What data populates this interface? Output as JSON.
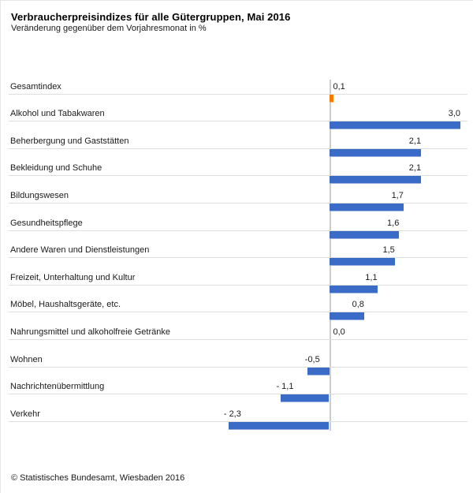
{
  "title": "Verbraucherpreisindizes für alle Gütergruppen, Mai 2016",
  "subtitle": "Veränderung gegenüber dem Vorjahresmonat in %",
  "footer": "© Statistisches Bundesamt, Wiesbaden 2016",
  "colors": {
    "bar_blue": "#3a6bc6",
    "bar_blue_edge": "#a9bfe8",
    "bar_orange": "#f47a00",
    "gridline": "#dedede",
    "zero_axis": "#cdcdcd",
    "text": "#1a1a1a"
  },
  "chart_data": {
    "type": "bar",
    "orientation": "horizontal",
    "title": "Verbraucherpreisindizes für alle Gütergruppen, Mai 2016",
    "subtitle": "Veränderung gegenüber dem Vorjahresmonat in %",
    "unit": "%",
    "xlim": [
      -2.5,
      3.3
    ],
    "grid": "row-separators",
    "legend": "none",
    "highlight_index": 0,
    "categories": [
      "Gesamtindex",
      "Alkohol und Tabakwaren",
      "Beherbergung und Gaststätten",
      "Bekleidung und Schuhe",
      "Bildungswesen",
      "Gesundheitspflege",
      "Andere Waren und Dienstleistungen",
      "Freizeit, Unterhaltung und Kultur",
      "Möbel, Haushaltsgeräte, etc.",
      "Nahrungsmittel und alkoholfreie Getränke",
      "Wohnen",
      "Nachrichtenübermittlung",
      "Verkehr"
    ],
    "values": [
      0.1,
      3.0,
      2.1,
      2.1,
      1.7,
      1.6,
      1.5,
      1.1,
      0.8,
      0.0,
      -0.5,
      -1.1,
      -2.3
    ],
    "value_labels": [
      "0,1",
      "3,0",
      "2,1",
      "2,1",
      "1,7",
      "1,6",
      "1,5",
      "1,1",
      "0,8",
      "0,0",
      "-0,5",
      "- 1,1",
      "- 2,3"
    ]
  }
}
